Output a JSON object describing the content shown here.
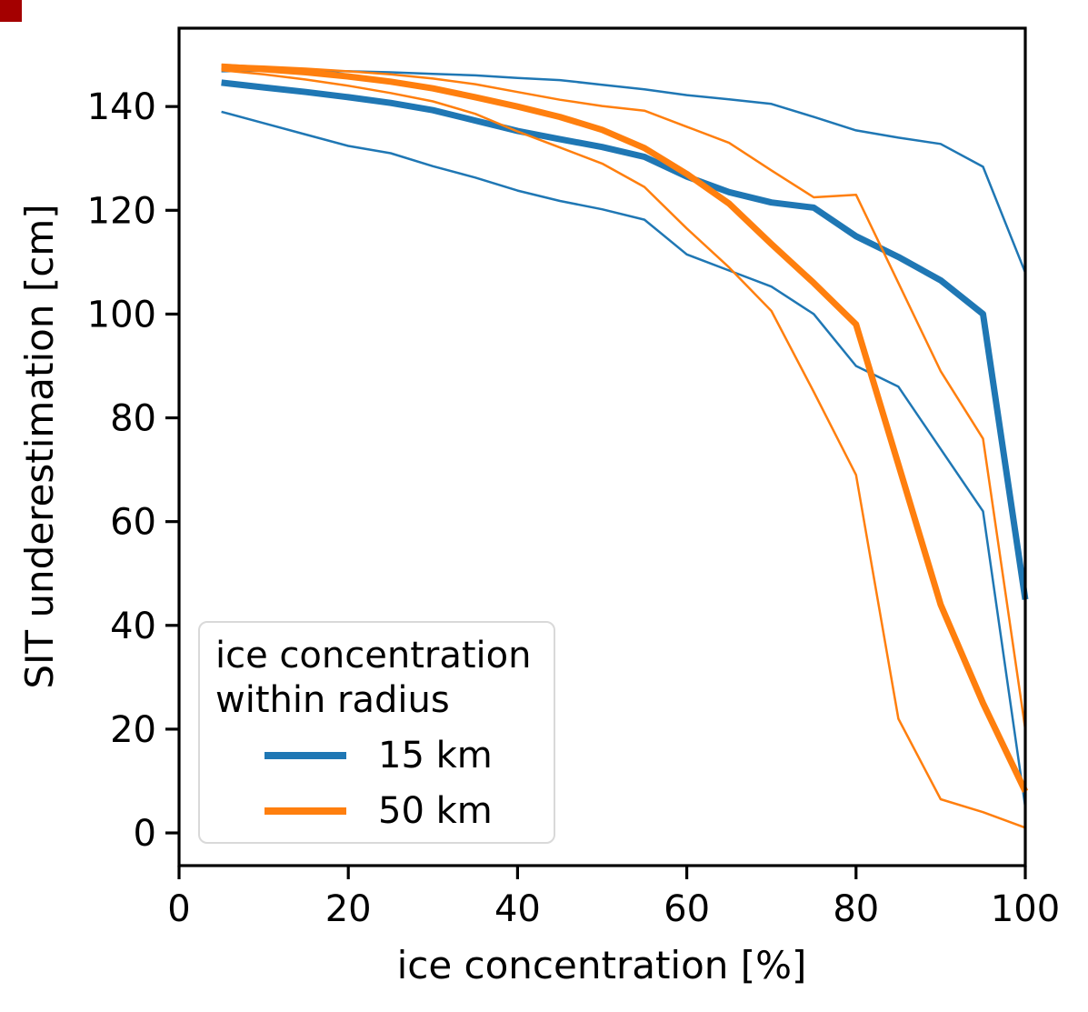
{
  "figure": {
    "background": "#ffffff",
    "frame_color": "#000000",
    "corner_marker_color": "#a40000"
  },
  "legend": {
    "title_line1": "ice concentration",
    "title_line2": "within radius",
    "position": "lower left",
    "entries": [
      {
        "label": "15 km",
        "color": "#1f77b4"
      },
      {
        "label": "50 km",
        "color": "#ff7f0e"
      }
    ]
  },
  "chart_data": {
    "type": "line",
    "title": "",
    "xlabel": "ice concentration [%]",
    "ylabel": "SIT underestimation [cm]",
    "xlim": [
      0,
      100
    ],
    "ylim": [
      -6.3,
      155.1
    ],
    "x_ticks": [
      0,
      20,
      40,
      60,
      80,
      100
    ],
    "y_ticks": [
      0,
      20,
      40,
      60,
      80,
      100,
      120,
      140
    ],
    "grid": false,
    "legend_position": "lower left",
    "x": [
      5,
      10,
      15,
      20,
      25,
      30,
      35,
      40,
      45,
      50,
      55,
      60,
      65,
      70,
      75,
      80,
      85,
      90,
      95,
      100
    ],
    "series": [
      {
        "name": "15 km upper quantile",
        "group": "15 km",
        "style": "quantile",
        "color": "#1f77b4",
        "line_width": 2.5,
        "values": [
          146.8,
          146.9,
          146.9,
          146.8,
          146.6,
          146.3,
          146.0,
          145.5,
          145.1,
          144.2,
          143.3,
          142.2,
          141.4,
          140.5,
          138.0,
          135.4,
          134.0,
          132.8,
          128.4,
          108.0
        ]
      },
      {
        "name": "15 km lower quantile",
        "group": "15 km",
        "style": "quantile",
        "color": "#1f77b4",
        "line_width": 2.5,
        "values": [
          139.0,
          136.8,
          134.6,
          132.4,
          131.0,
          128.5,
          126.3,
          123.8,
          121.8,
          120.2,
          118.2,
          111.5,
          108.4,
          105.3,
          100.0,
          90.0,
          86.0,
          74.0,
          62.0,
          5.0
        ]
      },
      {
        "name": "15 km median",
        "group": "15 km",
        "style": "median",
        "color": "#1f77b4",
        "line_width": 7,
        "values": [
          144.6,
          143.7,
          142.8,
          141.8,
          140.7,
          139.3,
          137.3,
          135.3,
          133.7,
          132.2,
          130.3,
          126.5,
          123.5,
          121.5,
          120.5,
          115.0,
          111.0,
          106.5,
          100.0,
          45.0
        ]
      },
      {
        "name": "50 km upper quantile",
        "group": "50 km",
        "style": "quantile",
        "color": "#ff7f0e",
        "line_width": 2.5,
        "values": [
          148.0,
          147.7,
          147.3,
          146.8,
          146.2,
          145.4,
          144.3,
          142.8,
          141.3,
          140.1,
          139.2,
          136.1,
          133.0,
          127.7,
          122.5,
          123.0,
          106.0,
          89.0,
          76.0,
          20.0
        ]
      },
      {
        "name": "50 km lower quantile",
        "group": "50 km",
        "style": "quantile",
        "color": "#ff7f0e",
        "line_width": 2.5,
        "values": [
          147.0,
          146.2,
          145.2,
          144.0,
          142.6,
          141.0,
          138.6,
          135.2,
          132.1,
          129.0,
          124.5,
          116.5,
          109.0,
          100.6,
          85.0,
          69.0,
          22.0,
          6.5,
          4.0,
          1.0
        ]
      },
      {
        "name": "50 km median",
        "group": "50 km",
        "style": "median",
        "color": "#ff7f0e",
        "line_width": 7,
        "values": [
          147.7,
          147.2,
          146.6,
          145.8,
          144.8,
          143.5,
          141.8,
          140.0,
          138.0,
          135.5,
          132.0,
          127.0,
          121.3,
          113.5,
          106.0,
          98.0,
          71.0,
          44.0,
          25.0,
          8.0
        ]
      }
    ]
  }
}
